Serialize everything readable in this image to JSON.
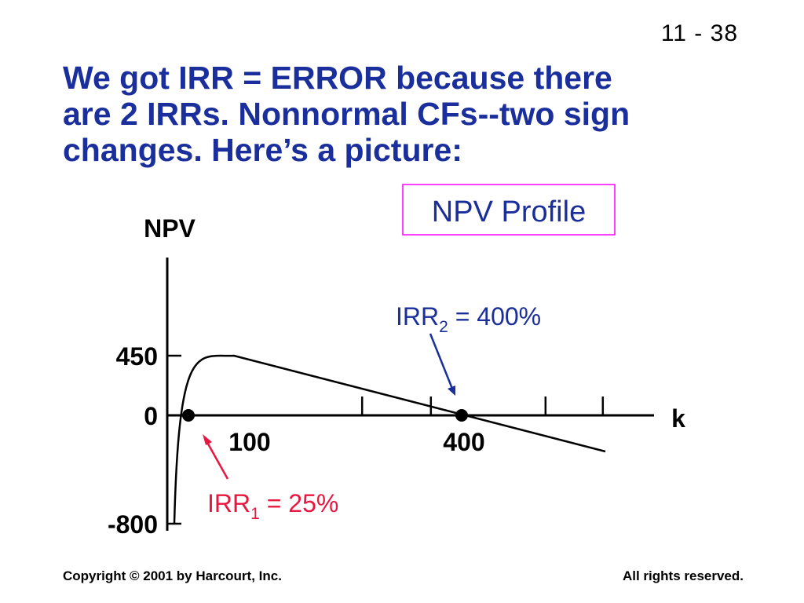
{
  "slide": {
    "number": "11 - 38"
  },
  "title": {
    "lines": [
      "We got IRR = ERROR because there",
      "are 2 IRRs.  Nonnormal CFs--two sign",
      "changes.  Here’s a picture:"
    ]
  },
  "chart_data": {
    "type": "line",
    "title": "NPV Profile",
    "ylabel": "NPV",
    "xlabel": "k",
    "y_ticks": [
      {
        "value": 450,
        "label": "450"
      },
      {
        "value": 0,
        "label": "0"
      },
      {
        "value": -800,
        "label": "-800"
      }
    ],
    "x_tick_labels": [
      {
        "value": 100,
        "label": "100"
      },
      {
        "value": 400,
        "label": "400"
      }
    ],
    "series": [
      {
        "x": [
          20,
          25,
          40,
          60,
          80,
          100,
          200,
          300,
          400,
          480
        ],
        "y": [
          -800,
          0,
          250,
          390,
          440,
          450,
          290,
          130,
          0,
          -130
        ]
      }
    ],
    "annotations": [
      {
        "text": "IRR",
        "sub": "1",
        "rest": " = 25%",
        "x": 25,
        "y": 0,
        "color": "#e8173f"
      },
      {
        "text": "IRR",
        "sub": "2",
        "rest": " = 400%",
        "x": 400,
        "y": 0,
        "color": "#1a2f9c"
      }
    ],
    "colors": {
      "axis": "#000000",
      "curve": "#000000",
      "title_box": "#ff00ff",
      "irr1": "#e8173f",
      "irr2": "#1a2f9c"
    }
  },
  "footer": {
    "left": "Copyright © 2001 by Harcourt, Inc.",
    "right": "All rights reserved."
  }
}
